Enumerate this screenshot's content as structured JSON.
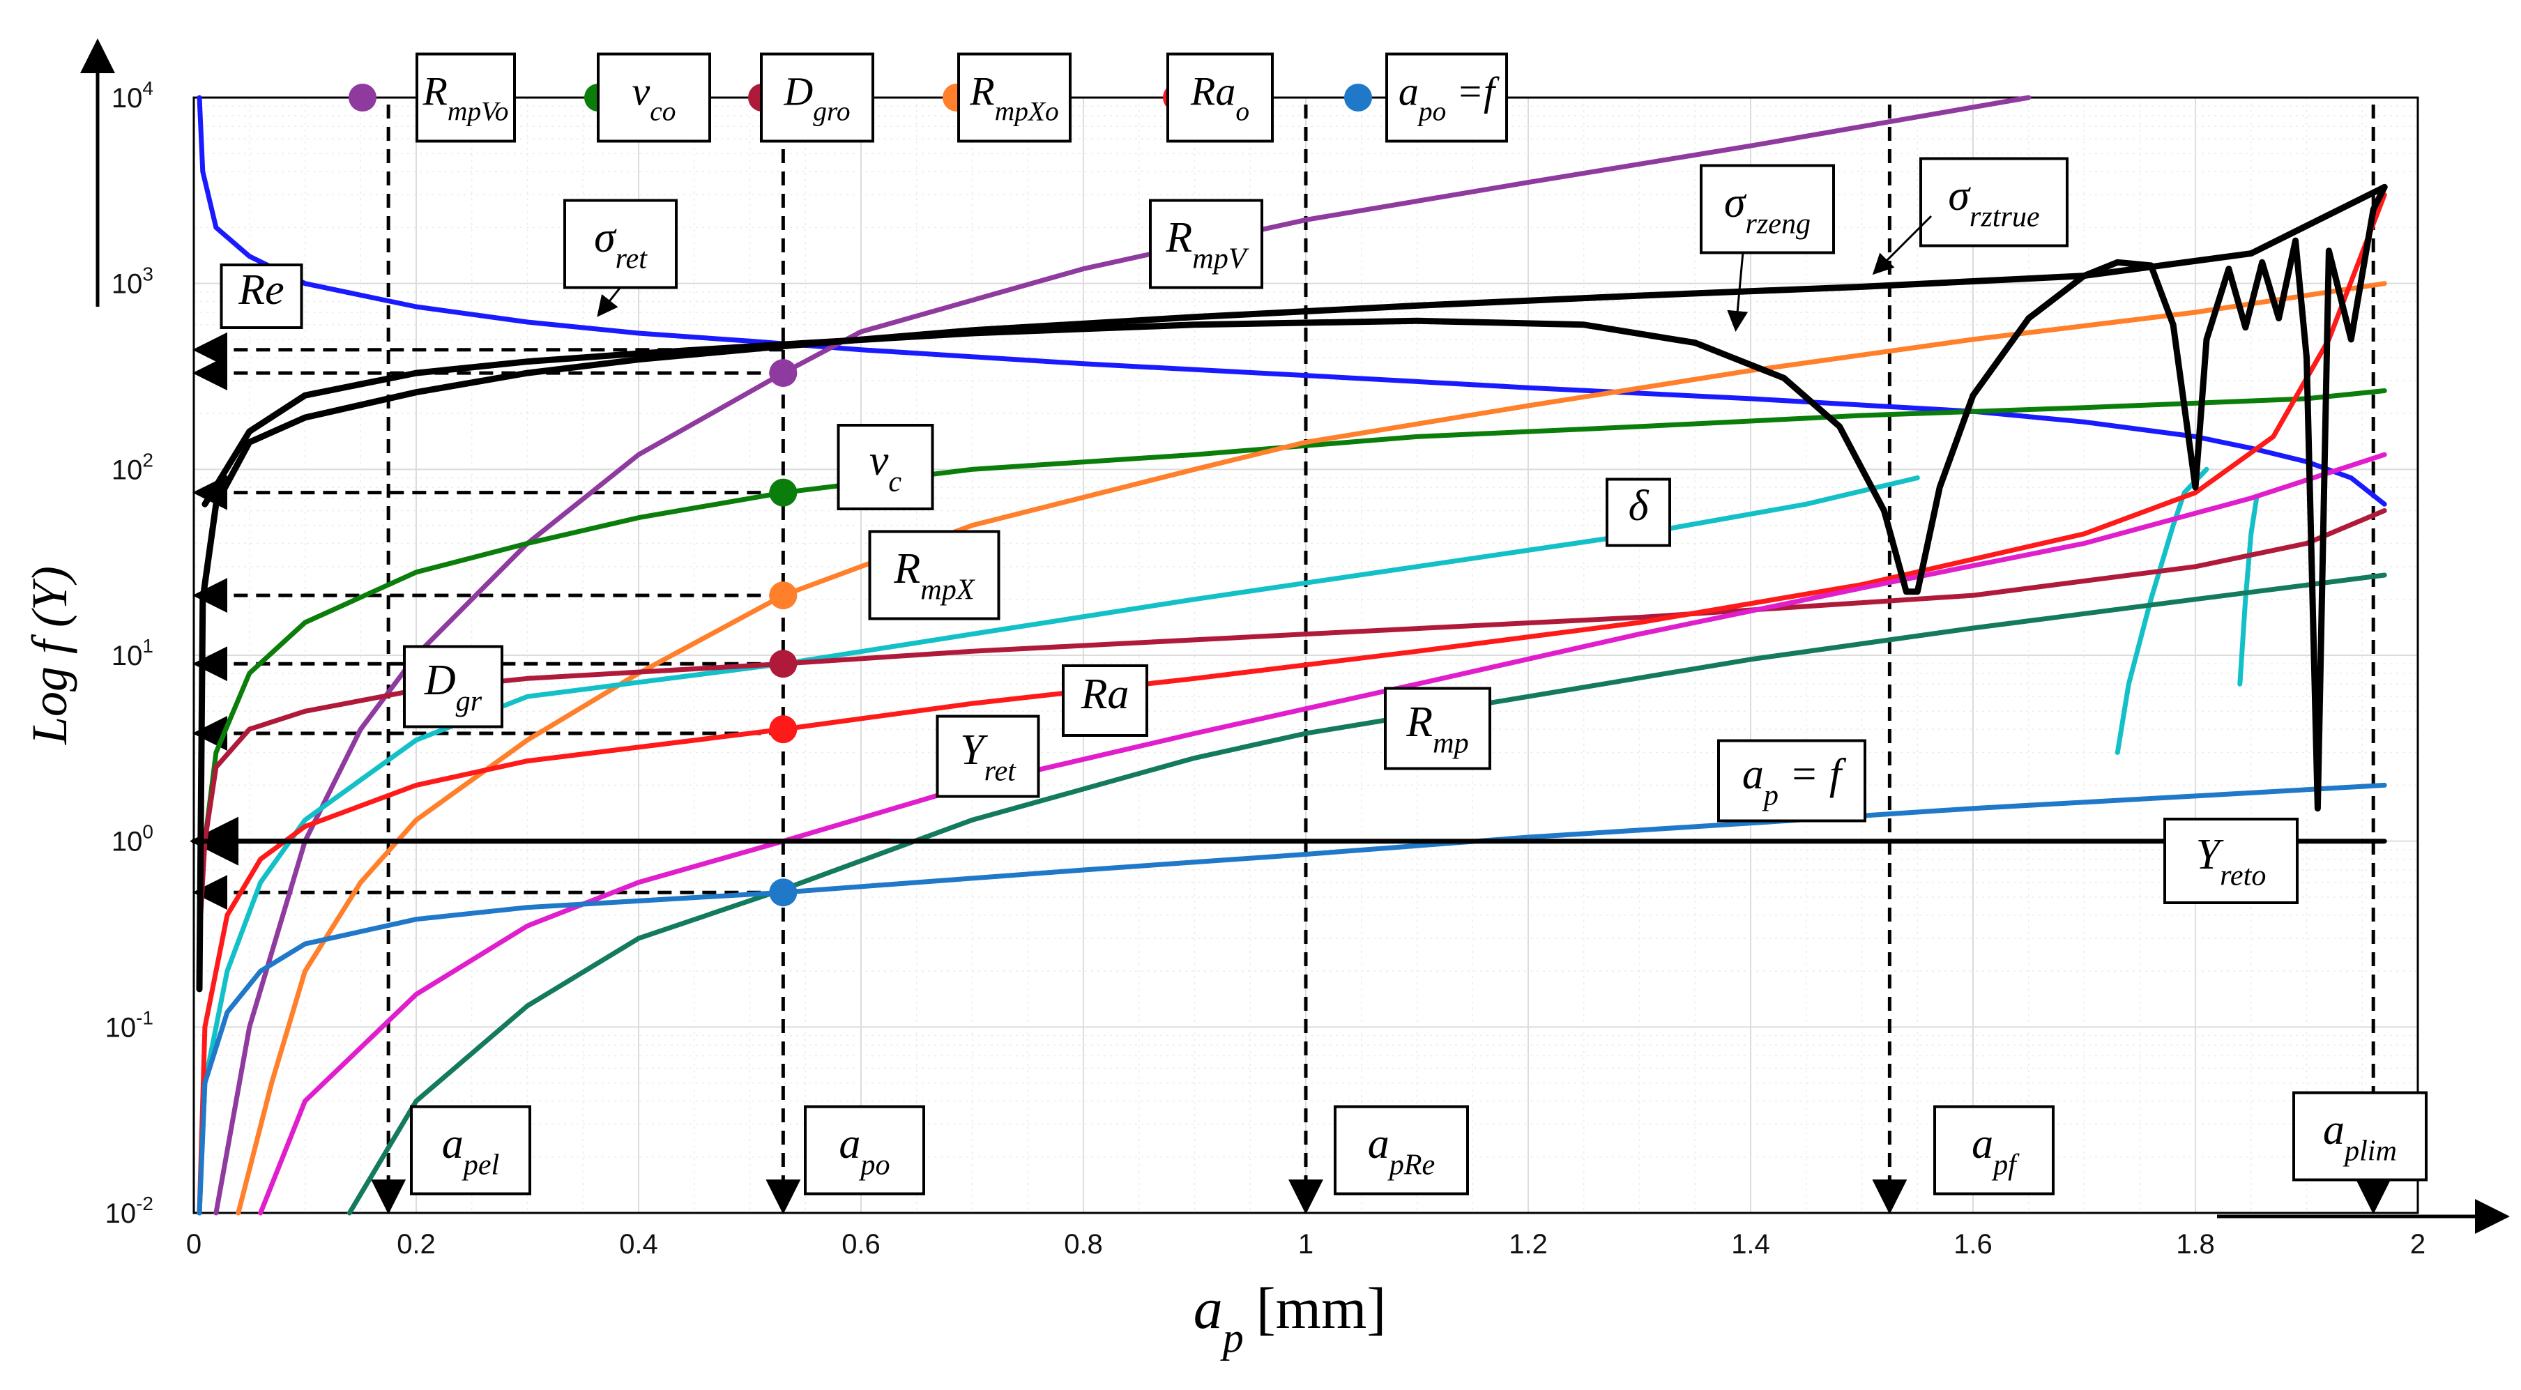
{
  "chart_data": {
    "type": "line",
    "title": "",
    "xlabel": "a_p [mm]",
    "xlabel_main": "a",
    "xlabel_sub": "p",
    "xlabel_unit": "[mm]",
    "ylabel": "Log f (Y)",
    "xlim": [
      0,
      2
    ],
    "ylim_log10": [
      -2,
      4
    ],
    "y_scale": "log",
    "grid": true,
    "x_ticks": [
      {
        "v": 0,
        "label": "0"
      },
      {
        "v": 0.2,
        "label": "0.2"
      },
      {
        "v": 0.4,
        "label": "0.4"
      },
      {
        "v": 0.6,
        "label": "0.6"
      },
      {
        "v": 0.8,
        "label": "0.8"
      },
      {
        "v": 1.0,
        "label": "1"
      },
      {
        "v": 1.2,
        "label": "1.2"
      },
      {
        "v": 1.4,
        "label": "1.4"
      },
      {
        "v": 1.6,
        "label": "1.6"
      },
      {
        "v": 1.8,
        "label": "1.8"
      },
      {
        "v": 2.0,
        "label": "2"
      }
    ],
    "y_ticks": [
      {
        "e": -2,
        "base": "10",
        "exp": "-2"
      },
      {
        "e": -1,
        "base": "10",
        "exp": "-1"
      },
      {
        "e": 0,
        "base": "10",
        "exp": "0"
      },
      {
        "e": 1,
        "base": "10",
        "exp": "1"
      },
      {
        "e": 2,
        "base": "10",
        "exp": "2"
      },
      {
        "e": 3,
        "base": "10",
        "exp": "3"
      },
      {
        "e": 4,
        "base": "10",
        "exp": "4"
      }
    ],
    "series": [
      {
        "name": "Re",
        "color": "#1a1aff",
        "width": 7,
        "points": [
          [
            0.005,
            10000
          ],
          [
            0.008,
            4000
          ],
          [
            0.02,
            2000
          ],
          [
            0.05,
            1400
          ],
          [
            0.1,
            1000
          ],
          [
            0.2,
            750
          ],
          [
            0.3,
            620
          ],
          [
            0.4,
            540
          ],
          [
            0.5,
            490
          ],
          [
            0.6,
            440
          ],
          [
            0.8,
            370
          ],
          [
            1.0,
            320
          ],
          [
            1.2,
            275
          ],
          [
            1.4,
            240
          ],
          [
            1.6,
            205
          ],
          [
            1.7,
            180
          ],
          [
            1.8,
            150
          ],
          [
            1.85,
            130
          ],
          [
            1.9,
            110
          ],
          [
            1.94,
            90
          ],
          [
            1.97,
            65
          ]
        ]
      },
      {
        "name": "R_mpV",
        "color": "#8e3a9e",
        "width": 7,
        "points": [
          [
            0.02,
            0.01
          ],
          [
            0.05,
            0.1
          ],
          [
            0.1,
            1
          ],
          [
            0.15,
            4
          ],
          [
            0.2,
            10
          ],
          [
            0.3,
            40
          ],
          [
            0.4,
            120
          ],
          [
            0.53,
            330
          ],
          [
            0.6,
            550
          ],
          [
            0.8,
            1200
          ],
          [
            1.0,
            2200
          ],
          [
            1.2,
            3500
          ],
          [
            1.4,
            5500
          ],
          [
            1.65,
            10000
          ]
        ]
      },
      {
        "name": "v_c",
        "color": "#0a7d0a",
        "width": 7,
        "points": [
          [
            0.005,
            0.5
          ],
          [
            0.01,
            1
          ],
          [
            0.02,
            3
          ],
          [
            0.05,
            8
          ],
          [
            0.1,
            15
          ],
          [
            0.2,
            28
          ],
          [
            0.3,
            40
          ],
          [
            0.4,
            55
          ],
          [
            0.53,
            75
          ],
          [
            0.7,
            100
          ],
          [
            0.9,
            120
          ],
          [
            1.1,
            150
          ],
          [
            1.3,
            170
          ],
          [
            1.5,
            195
          ],
          [
            1.7,
            215
          ],
          [
            1.9,
            240
          ],
          [
            1.97,
            265
          ]
        ]
      },
      {
        "name": "R_mpX",
        "color": "#ff7f2a",
        "width": 7,
        "points": [
          [
            0.04,
            0.01
          ],
          [
            0.07,
            0.05
          ],
          [
            0.1,
            0.2
          ],
          [
            0.15,
            0.6
          ],
          [
            0.2,
            1.3
          ],
          [
            0.3,
            3.5
          ],
          [
            0.4,
            8
          ],
          [
            0.53,
            21
          ],
          [
            0.7,
            50
          ],
          [
            0.9,
            100
          ],
          [
            1.0,
            140
          ],
          [
            1.2,
            220
          ],
          [
            1.4,
            340
          ],
          [
            1.6,
            500
          ],
          [
            1.8,
            700
          ],
          [
            1.97,
            1000
          ]
        ]
      },
      {
        "name": "delta",
        "color": "#14c0c8",
        "width": 7,
        "points": [
          [
            0.005,
            0.01
          ],
          [
            0.01,
            0.05
          ],
          [
            0.03,
            0.2
          ],
          [
            0.06,
            0.6
          ],
          [
            0.1,
            1.3
          ],
          [
            0.2,
            3.5
          ],
          [
            0.3,
            6
          ],
          [
            0.53,
            9
          ],
          [
            0.7,
            13
          ],
          [
            0.9,
            20
          ],
          [
            1.1,
            30
          ],
          [
            1.3,
            45
          ],
          [
            1.45,
            65
          ],
          [
            1.55,
            90
          ]
        ]
      },
      {
        "name": "delta-branch-1",
        "color": "#14c0c8",
        "width": 7,
        "points": [
          [
            1.73,
            3
          ],
          [
            1.74,
            7
          ],
          [
            1.76,
            20
          ],
          [
            1.78,
            50
          ],
          [
            1.79,
            75
          ],
          [
            1.81,
            100
          ]
        ]
      },
      {
        "name": "delta-branch-2",
        "color": "#14c0c8",
        "width": 7,
        "points": [
          [
            1.84,
            7
          ],
          [
            1.845,
            20
          ],
          [
            1.85,
            45
          ],
          [
            1.855,
            70
          ]
        ]
      },
      {
        "name": "D_gr",
        "color": "#b01a3a",
        "width": 7,
        "points": [
          [
            0.005,
            0.3
          ],
          [
            0.01,
            1
          ],
          [
            0.02,
            2.5
          ],
          [
            0.05,
            4
          ],
          [
            0.1,
            5
          ],
          [
            0.2,
            6.5
          ],
          [
            0.3,
            7.5
          ],
          [
            0.53,
            9
          ],
          [
            0.7,
            10.5
          ],
          [
            1.0,
            13
          ],
          [
            1.3,
            16
          ],
          [
            1.6,
            21
          ],
          [
            1.8,
            30
          ],
          [
            1.9,
            40
          ],
          [
            1.97,
            60
          ]
        ]
      },
      {
        "name": "Ra",
        "color": "#ff1a1a",
        "width": 7,
        "points": [
          [
            0.005,
            0.01
          ],
          [
            0.01,
            0.1
          ],
          [
            0.03,
            0.4
          ],
          [
            0.06,
            0.8
          ],
          [
            0.1,
            1.2
          ],
          [
            0.2,
            2
          ],
          [
            0.3,
            2.7
          ],
          [
            0.53,
            4
          ],
          [
            0.7,
            5.5
          ],
          [
            0.9,
            7.5
          ],
          [
            1.1,
            10.5
          ],
          [
            1.3,
            15
          ],
          [
            1.5,
            24
          ],
          [
            1.7,
            45
          ],
          [
            1.8,
            75
          ],
          [
            1.87,
            150
          ],
          [
            1.92,
            500
          ],
          [
            1.97,
            3000
          ]
        ]
      },
      {
        "name": "Y_ret",
        "color": "#e01ecc",
        "width": 7,
        "points": [
          [
            0.06,
            0.01
          ],
          [
            0.1,
            0.04
          ],
          [
            0.2,
            0.15
          ],
          [
            0.3,
            0.35
          ],
          [
            0.4,
            0.6
          ],
          [
            0.53,
            1
          ],
          [
            0.7,
            2
          ],
          [
            0.9,
            3.8
          ],
          [
            1.1,
            7
          ],
          [
            1.3,
            13
          ],
          [
            1.5,
            23
          ],
          [
            1.7,
            40
          ],
          [
            1.85,
            70
          ],
          [
            1.97,
            120
          ]
        ]
      },
      {
        "name": "R_mp",
        "color": "#137a5e",
        "width": 7,
        "points": [
          [
            0.14,
            0.01
          ],
          [
            0.2,
            0.04
          ],
          [
            0.3,
            0.13
          ],
          [
            0.4,
            0.3
          ],
          [
            0.53,
            0.55
          ],
          [
            0.7,
            1.3
          ],
          [
            0.9,
            2.8
          ],
          [
            1.0,
            3.8
          ],
          [
            1.2,
            6
          ],
          [
            1.4,
            9.5
          ],
          [
            1.6,
            14
          ],
          [
            1.8,
            20
          ],
          [
            1.97,
            27
          ]
        ]
      },
      {
        "name": "a_p = f",
        "color": "#1f78c8",
        "width": 7,
        "points": [
          [
            0.005,
            0.01
          ],
          [
            0.01,
            0.05
          ],
          [
            0.03,
            0.12
          ],
          [
            0.06,
            0.2
          ],
          [
            0.1,
            0.28
          ],
          [
            0.2,
            0.38
          ],
          [
            0.3,
            0.44
          ],
          [
            0.53,
            0.53
          ],
          [
            0.8,
            0.7
          ],
          [
            1.0,
            0.85
          ],
          [
            1.2,
            1.05
          ],
          [
            1.4,
            1.25
          ],
          [
            1.6,
            1.5
          ],
          [
            1.8,
            1.75
          ],
          [
            1.97,
            2.0
          ]
        ]
      },
      {
        "name": "Y_reto",
        "color": "#000000",
        "width": 7,
        "points": [
          [
            0.0,
            1.0
          ],
          [
            1.97,
            1.0
          ]
        ]
      },
      {
        "name": "sigma_rztrue",
        "color": "#000000",
        "width": 9,
        "points": [
          [
            0.005,
            0.16
          ],
          [
            0.008,
            20
          ],
          [
            0.02,
            65
          ],
          [
            0.05,
            140
          ],
          [
            0.1,
            190
          ],
          [
            0.2,
            260
          ],
          [
            0.3,
            330
          ],
          [
            0.4,
            390
          ],
          [
            0.53,
            460
          ],
          [
            0.7,
            560
          ],
          [
            0.9,
            660
          ],
          [
            1.1,
            760
          ],
          [
            1.3,
            860
          ],
          [
            1.5,
            960
          ],
          [
            1.7,
            1100
          ],
          [
            1.85,
            1450
          ],
          [
            1.97,
            3300
          ]
        ]
      },
      {
        "name": "sigma_rzeng",
        "color": "#000000",
        "width": 9,
        "points": [
          [
            0.01,
            65
          ],
          [
            0.05,
            160
          ],
          [
            0.1,
            250
          ],
          [
            0.2,
            330
          ],
          [
            0.3,
            380
          ],
          [
            0.4,
            420
          ],
          [
            0.53,
            470
          ],
          [
            0.7,
            540
          ],
          [
            0.9,
            600
          ],
          [
            1.1,
            630
          ],
          [
            1.25,
            600
          ],
          [
            1.35,
            480
          ],
          [
            1.43,
            310
          ],
          [
            1.48,
            170
          ],
          [
            1.52,
            60
          ],
          [
            1.54,
            22
          ],
          [
            1.55,
            22
          ],
          [
            1.57,
            80
          ],
          [
            1.6,
            250
          ],
          [
            1.65,
            650
          ],
          [
            1.7,
            1100
          ],
          [
            1.73,
            1300
          ],
          [
            1.76,
            1250
          ],
          [
            1.78,
            600
          ],
          [
            1.8,
            80
          ],
          [
            1.81,
            500
          ],
          [
            1.83,
            1200
          ],
          [
            1.845,
            580
          ],
          [
            1.86,
            1300
          ],
          [
            1.875,
            650
          ],
          [
            1.89,
            1700
          ],
          [
            1.9,
            400
          ],
          [
            1.91,
            1.5
          ],
          [
            1.92,
            1500
          ],
          [
            1.94,
            500
          ],
          [
            1.96,
            2500
          ],
          [
            1.97,
            3300
          ]
        ]
      }
    ],
    "markers": [
      {
        "name": "R_mpVo",
        "x": 0.53,
        "y": 330,
        "color": "#8e3a9e"
      },
      {
        "name": "v_co",
        "x": 0.53,
        "y": 75,
        "color": "#0a7d0a"
      },
      {
        "name": "R_mpXo",
        "x": 0.53,
        "y": 21,
        "color": "#ff7f2a"
      },
      {
        "name": "D_gro",
        "x": 0.53,
        "y": 9,
        "color": "#b01a3a"
      },
      {
        "name": "Ra_o",
        "x": 0.53,
        "y": 4,
        "color": "#ff1a1a"
      },
      {
        "name": "a_po",
        "x": 0.53,
        "y": 0.53,
        "color": "#1f78c8"
      }
    ],
    "vertical_refs": [
      {
        "name": "a_pel",
        "x": 0.175
      },
      {
        "name": "a_po",
        "x": 0.53
      },
      {
        "name": "a_pRe",
        "x": 1.0
      },
      {
        "name": "a_pf",
        "x": 1.525
      },
      {
        "name": "a_plim",
        "x": 1.96
      }
    ],
    "horizontal_refs": [
      {
        "name": "Re-ref",
        "y": 440,
        "x_to": 0.53
      },
      {
        "name": "R_mpVo-ref",
        "y": 330,
        "x_to": 0.53
      },
      {
        "name": "v_co-ref",
        "y": 75,
        "x_to": 0.53
      },
      {
        "name": "R_mpXo-ref",
        "y": 21,
        "x_to": 0.53
      },
      {
        "name": "D_gro-ref",
        "y": 9,
        "x_to": 0.53
      },
      {
        "name": "Ra_o-ref",
        "y": 3.8,
        "x_to": 0.53
      },
      {
        "name": "a_po-ref",
        "y": 0.53,
        "x_to": 0.53
      },
      {
        "name": "Y_reto-ref",
        "y": 1.0,
        "x_to": 0.0
      }
    ],
    "legend": [
      {
        "main": "R",
        "sub": "mpVo",
        "color": "#8e3a9e"
      },
      {
        "main": "v",
        "sub": "co",
        "color": "#0a7d0a"
      },
      {
        "main": "D",
        "sub": "gro",
        "color": "#b01a3a"
      },
      {
        "main": "R",
        "sub": "mpXo",
        "color": "#ff7f2a"
      },
      {
        "main": "Ra",
        "sub": "o",
        "color": "#ff1a1a"
      },
      {
        "main": "a",
        "sub": "po",
        "color": "#1f78c8",
        "suffix": " =f"
      }
    ],
    "curve_labels": [
      {
        "main": "Re",
        "sub": ""
      },
      {
        "main": "σ",
        "sub": "ret"
      },
      {
        "main": "R",
        "sub": "mpV"
      },
      {
        "main": "σ",
        "sub": "rzeng"
      },
      {
        "main": "σ",
        "sub": "rztrue"
      },
      {
        "main": "v",
        "sub": "c"
      },
      {
        "main": "δ",
        "sub": ""
      },
      {
        "main": "R",
        "sub": "mpX"
      },
      {
        "main": "D",
        "sub": "gr"
      },
      {
        "main": "Ra",
        "sub": ""
      },
      {
        "main": "Y",
        "sub": "ret"
      },
      {
        "main": "R",
        "sub": "mp"
      },
      {
        "main": "a",
        "sub": "p",
        "suffix": " = f"
      },
      {
        "main": "Y",
        "sub": "reto"
      }
    ],
    "bottom_labels": [
      {
        "main": "a",
        "sub": "pel"
      },
      {
        "main": "a",
        "sub": "po"
      },
      {
        "main": "a",
        "sub": "pRe"
      },
      {
        "main": "a",
        "sub": "pf"
      },
      {
        "main": "a",
        "sub": "plim"
      }
    ]
  }
}
